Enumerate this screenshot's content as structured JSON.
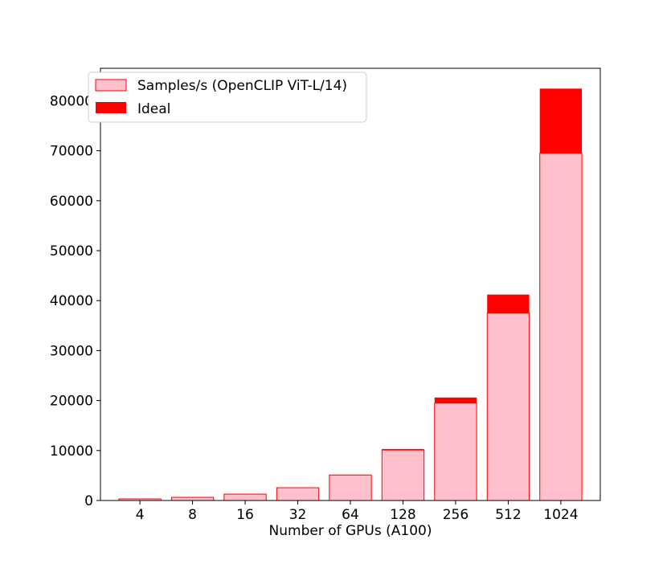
{
  "chart_data": {
    "type": "bar",
    "title": "",
    "xlabel": "Number of GPUs (A100)",
    "ylabel": "",
    "categories": [
      "4",
      "8",
      "16",
      "32",
      "64",
      "128",
      "256",
      "512",
      "1024"
    ],
    "series": [
      {
        "name": "Samples/s (OpenCLIP ViT-L/14)",
        "values": [
          320,
          640,
          1280,
          2560,
          5100,
          10100,
          19500,
          37500,
          69500
        ],
        "color": "#ffc0cb",
        "edge_color": "#ff0000"
      },
      {
        "name": "Ideal",
        "values": [
          322,
          644,
          1288,
          2576,
          5152,
          10304,
          20608,
          41216,
          82432
        ],
        "color": "#ff0000"
      }
    ],
    "yticks": [
      0,
      10000,
      20000,
      30000,
      40000,
      50000,
      60000,
      70000,
      80000
    ],
    "ylim": [
      0,
      86500
    ],
    "grid": false,
    "legend_position": "top-left"
  }
}
